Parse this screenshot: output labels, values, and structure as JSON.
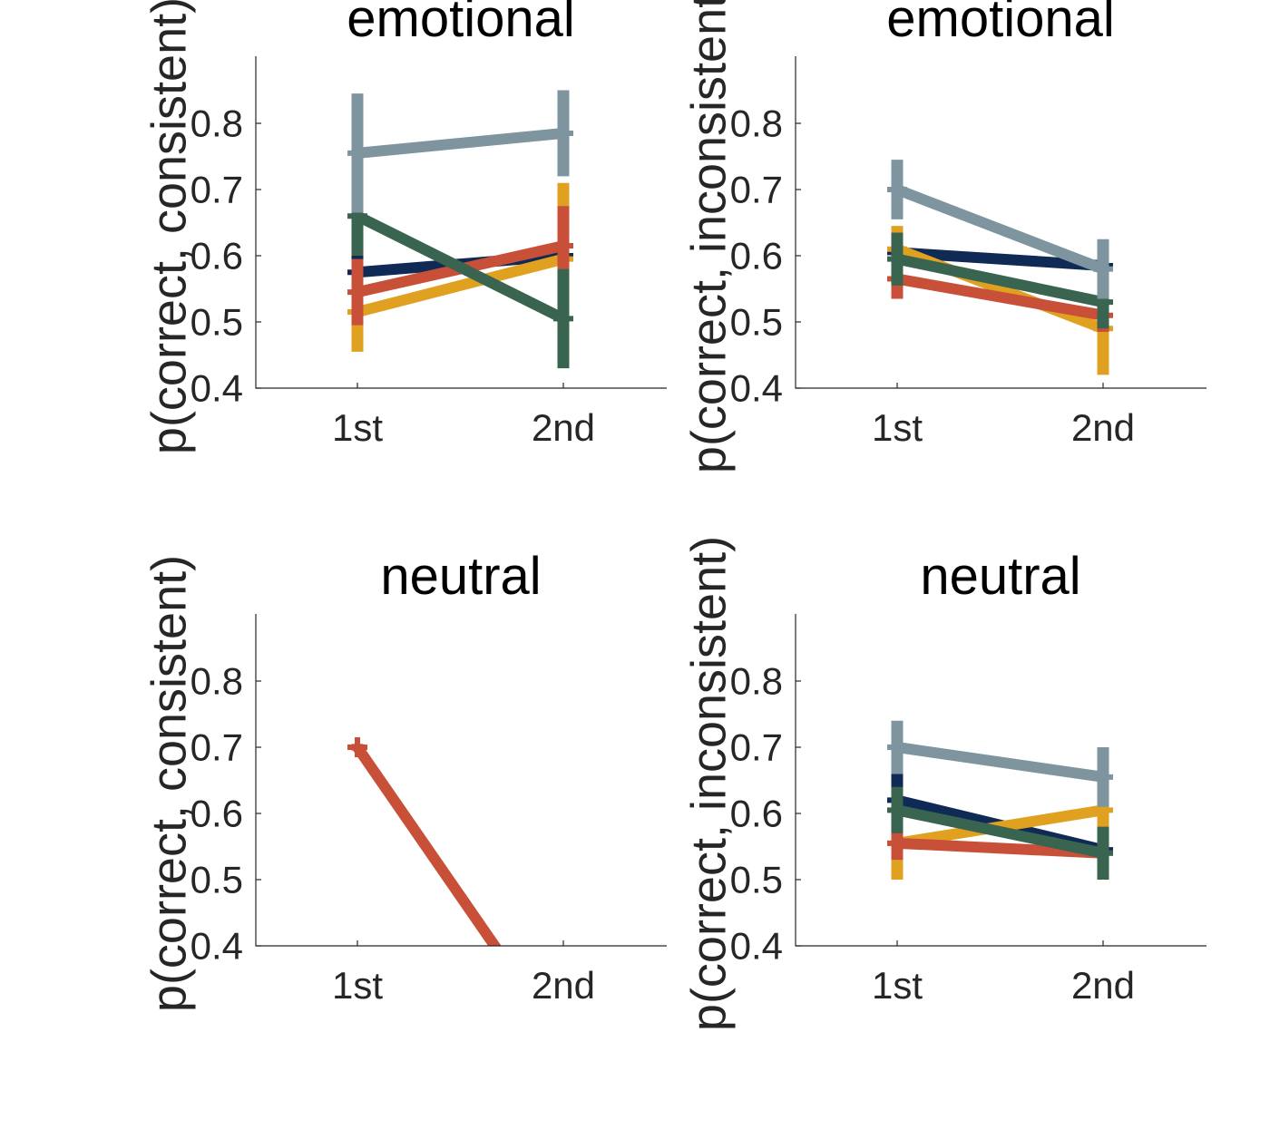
{
  "colors": {
    "navy": "#0f2a55",
    "red": "#c85038",
    "gold": "#e0a020",
    "green": "#386450",
    "gray": "#7e95a0",
    "axis": "#262626"
  },
  "chart_data": [
    {
      "type": "line",
      "title": "emotional",
      "ylabel": "p(correct, consistent)",
      "categories": [
        "1st",
        "2nd"
      ],
      "ylim": [
        0.4,
        0.9
      ],
      "yticks": [
        0.4,
        0.5,
        0.6,
        0.7,
        0.8
      ],
      "ytick_labels": [
        "0.4",
        "0.5",
        "0.6",
        "0.7",
        "0.8"
      ],
      "series": [
        {
          "color": "navy",
          "values": [
            0.575,
            0.6
          ],
          "err": [
            0.035,
            0.04
          ]
        },
        {
          "color": "gold",
          "values": [
            0.515,
            0.595
          ],
          "err": [
            0.06,
            0.115
          ]
        },
        {
          "color": "red",
          "values": [
            0.545,
            0.615
          ],
          "err": [
            0.05,
            0.06
          ]
        },
        {
          "color": "green",
          "values": [
            0.66,
            0.505
          ],
          "err": [
            0.06,
            0.075
          ]
        },
        {
          "color": "gray",
          "values": [
            0.755,
            0.785
          ],
          "err": [
            0.09,
            0.065
          ]
        }
      ]
    },
    {
      "type": "line",
      "title": "emotional",
      "ylabel": "p(correct, inconsistent)",
      "categories": [
        "1st",
        "2nd"
      ],
      "ylim": [
        0.4,
        0.9
      ],
      "yticks": [
        0.4,
        0.5,
        0.6,
        0.7,
        0.8
      ],
      "ytick_labels": [
        "0.4",
        "0.5",
        "0.6",
        "0.7",
        "0.8"
      ],
      "series": [
        {
          "color": "navy",
          "values": [
            0.605,
            0.585
          ],
          "err": [
            0.03,
            0.03
          ]
        },
        {
          "color": "gold",
          "values": [
            0.61,
            0.49
          ],
          "err": [
            0.035,
            0.07
          ]
        },
        {
          "color": "red",
          "values": [
            0.565,
            0.51
          ],
          "err": [
            0.03,
            0.025
          ]
        },
        {
          "color": "green",
          "values": [
            0.595,
            0.53
          ],
          "err": [
            0.04,
            0.04
          ]
        },
        {
          "color": "gray",
          "values": [
            0.7,
            0.58
          ],
          "err": [
            0.045,
            0.045
          ]
        }
      ]
    },
    {
      "type": "line",
      "title": "neutral",
      "ylabel": "p(correct, consistent)",
      "categories": [
        "1st",
        "2nd"
      ],
      "ylim": [
        0.4,
        0.9
      ],
      "yticks": [
        0.4,
        0.5,
        0.6,
        0.7,
        0.8
      ],
      "ytick_labels": [
        "0.4",
        "0.5",
        "0.6",
        "0.7",
        "0.8"
      ],
      "series": [
        {
          "color": "red",
          "values": [
            0.7,
            0.25
          ],
          "err": [
            0.005,
            0.005
          ]
        }
      ]
    },
    {
      "type": "line",
      "title": "neutral",
      "ylabel": "p(correct, inconsistent)",
      "categories": [
        "1st",
        "2nd"
      ],
      "ylim": [
        0.4,
        0.9
      ],
      "yticks": [
        0.4,
        0.5,
        0.6,
        0.7,
        0.8
      ],
      "ytick_labels": [
        "0.4",
        "0.5",
        "0.6",
        "0.7",
        "0.8"
      ],
      "series": [
        {
          "color": "navy",
          "values": [
            0.62,
            0.545
          ],
          "err": [
            0.04,
            0.045
          ]
        },
        {
          "color": "gold",
          "values": [
            0.555,
            0.605
          ],
          "err": [
            0.055,
            0.03
          ]
        },
        {
          "color": "red",
          "values": [
            0.555,
            0.54
          ],
          "err": [
            0.025,
            0.02
          ]
        },
        {
          "color": "green",
          "values": [
            0.605,
            0.54
          ],
          "err": [
            0.035,
            0.04
          ]
        },
        {
          "color": "gray",
          "values": [
            0.7,
            0.655
          ],
          "err": [
            0.04,
            0.045
          ]
        }
      ]
    }
  ]
}
